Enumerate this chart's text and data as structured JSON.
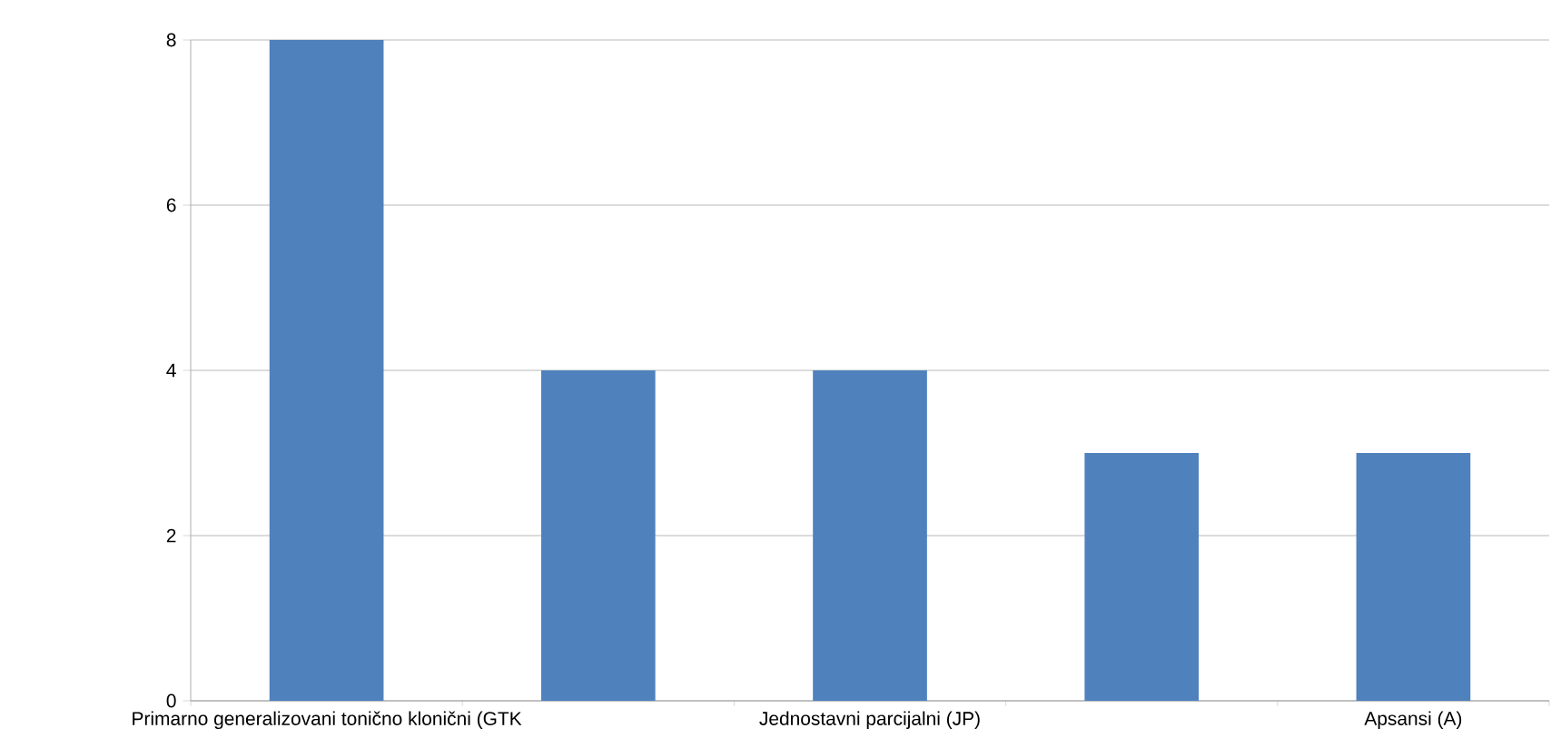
{
  "chart_data": {
    "type": "bar",
    "categories": [
      "Primarno generalizovani tonično klonični (GTK",
      null,
      "Jednostavni parcijalni (JP)",
      null,
      "Apsansi (A)"
    ],
    "values": [
      8,
      4,
      4,
      3,
      3
    ],
    "color": "#4f81bd",
    "ylim": [
      0,
      8
    ],
    "yticks": [
      0,
      2,
      4,
      6,
      8
    ],
    "grid": "y"
  }
}
